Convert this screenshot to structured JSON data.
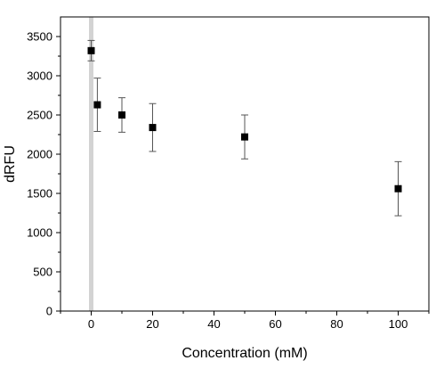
{
  "chart_data": {
    "type": "scatter",
    "title": "",
    "xlabel": "Concentration (mM)",
    "ylabel": "dRFU",
    "xlim": [
      -10,
      110
    ],
    "ylim": [
      0,
      3750
    ],
    "x_ticks": [
      0,
      20,
      40,
      60,
      80,
      100
    ],
    "y_ticks": [
      0,
      500,
      1000,
      1500,
      2000,
      2500,
      3000,
      3500
    ],
    "grid": false,
    "marker": "square",
    "marker_color": "#000000",
    "highlight_band": {
      "x": 0,
      "color": "#d3d3d3"
    },
    "series": [
      {
        "points": [
          {
            "x": 0,
            "y": 3320,
            "err": 130
          },
          {
            "x": 2,
            "y": 2630,
            "err": 340
          },
          {
            "x": 10,
            "y": 2500,
            "err": 220
          },
          {
            "x": 20,
            "y": 2340,
            "err": 305
          },
          {
            "x": 50,
            "y": 2220,
            "err": 280
          },
          {
            "x": 100,
            "y": 1560,
            "err": 345
          }
        ]
      }
    ]
  }
}
